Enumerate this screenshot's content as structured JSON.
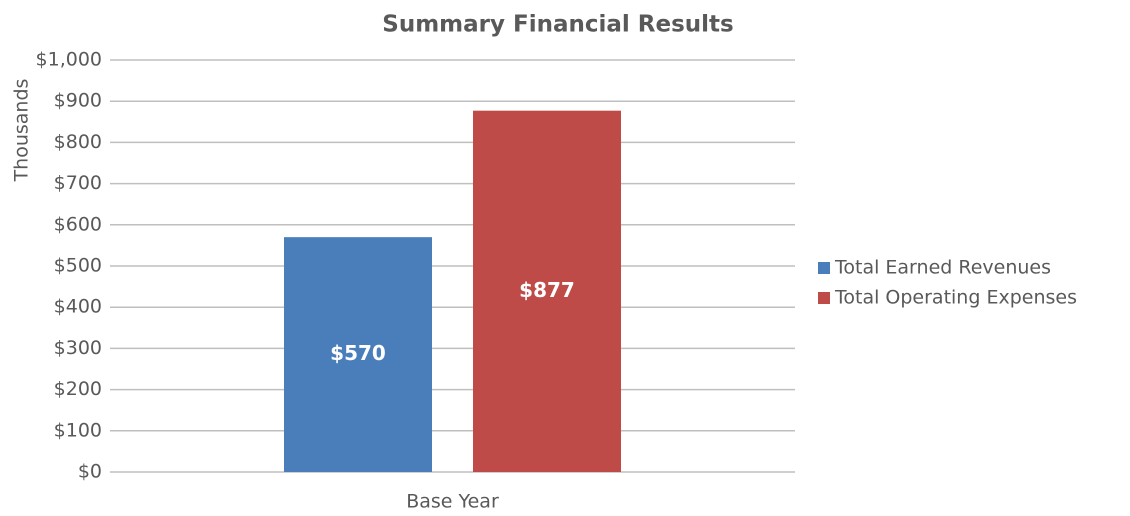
{
  "chart_data": {
    "type": "bar",
    "title": "Summary Financial Results",
    "y_label": "Thousands",
    "categories": [
      "Base Year"
    ],
    "series": [
      {
        "name": "Total Earned Revenues",
        "color": "#4a7ebb",
        "values": [
          570
        ],
        "value_labels": [
          "$570"
        ]
      },
      {
        "name": "Total Operating Expenses",
        "color": "#be4b48",
        "values": [
          877
        ],
        "value_labels": [
          "$877"
        ]
      }
    ],
    "ylim": [
      0,
      1000
    ],
    "yticks": [
      {
        "value": 0,
        "label": "$0"
      },
      {
        "value": 100,
        "label": "$100"
      },
      {
        "value": 200,
        "label": "$200"
      },
      {
        "value": 300,
        "label": "$300"
      },
      {
        "value": 400,
        "label": "$400"
      },
      {
        "value": 500,
        "label": "$500"
      },
      {
        "value": 600,
        "label": "$600"
      },
      {
        "value": 700,
        "label": "$700"
      },
      {
        "value": 800,
        "label": "$800"
      },
      {
        "value": 900,
        "label": "$900"
      },
      {
        "value": 1000,
        "label": "$1,000"
      }
    ],
    "grid": true,
    "legend": "right"
  }
}
